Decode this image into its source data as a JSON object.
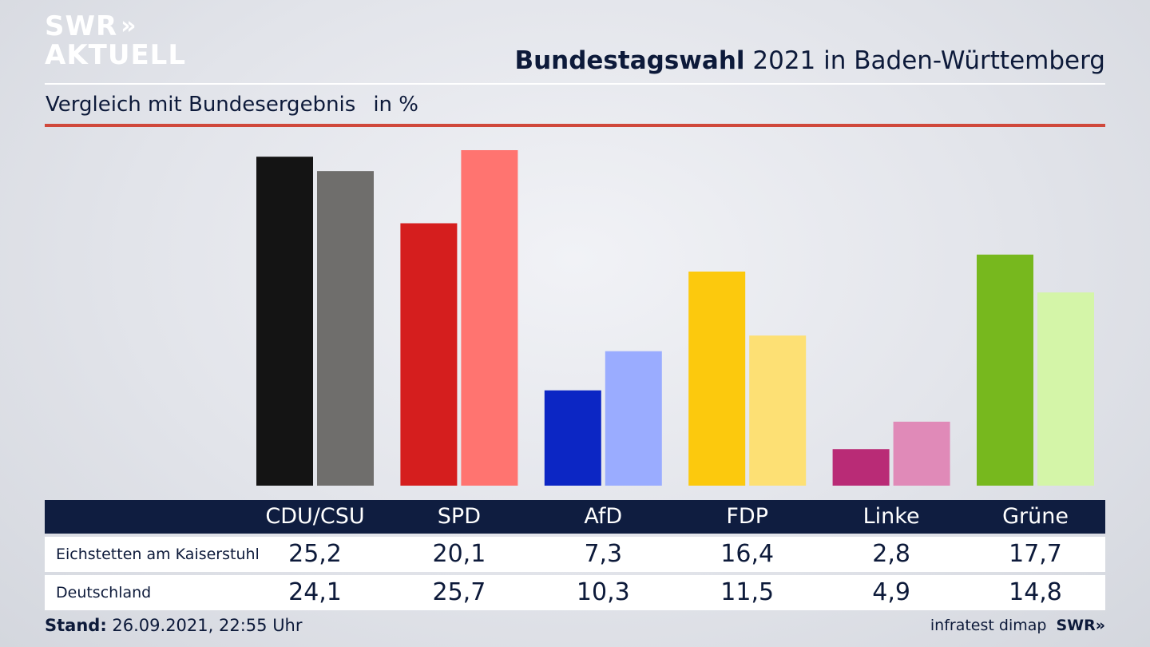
{
  "logo": {
    "line1": "SWR",
    "line1_chevrons": "»",
    "line2": "AKTUELL"
  },
  "title": {
    "bold": "Bundestagswahl",
    "rest": "2021 in Baden-Württemberg"
  },
  "subtitle": {
    "text": "Vergleich mit Bundesergebnis",
    "unit": "in %"
  },
  "chart_data": {
    "type": "bar",
    "categories": [
      "CDU/CSU",
      "SPD",
      "AfD",
      "FDP",
      "Linke",
      "Grüne"
    ],
    "series": [
      {
        "name": "Eichstetten am Kaiserstuhl",
        "values": [
          25.2,
          20.1,
          7.3,
          16.4,
          2.8,
          17.7
        ],
        "colors": [
          "#141414",
          "#d51e1e",
          "#0c26c4",
          "#fcc90d",
          "#b92b76",
          "#77b81e"
        ]
      },
      {
        "name": "Deutschland",
        "values": [
          24.1,
          25.7,
          10.3,
          11.5,
          4.9,
          14.8
        ],
        "colors": [
          "#6f6e6c",
          "#ff7470",
          "#9aacff",
          "#fde074",
          "#e08ab8",
          "#d4f5a8"
        ]
      }
    ],
    "display_values": [
      [
        "25,2",
        "20,1",
        "7,3",
        "16,4",
        "2,8",
        "17,7"
      ],
      [
        "24,1",
        "25,7",
        "10,3",
        "11,5",
        "4,9",
        "14,8"
      ]
    ],
    "ylim": [
      0,
      25.7
    ],
    "grid": false
  },
  "footer": {
    "stand_label": "Stand:",
    "stand_value": "26.09.2021, 22:55 Uhr",
    "source": "infratest dimap",
    "source_logo": "SWR",
    "source_logo_chevrons": "»"
  }
}
